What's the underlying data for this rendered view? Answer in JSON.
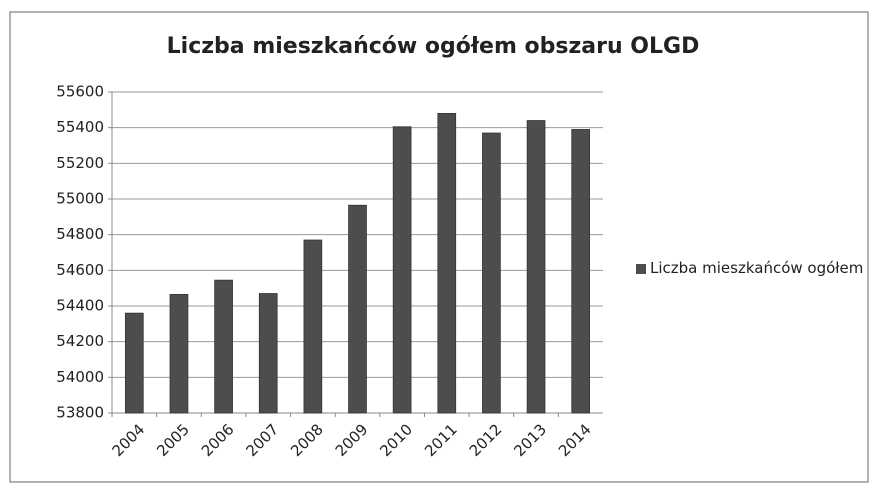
{
  "chart_data": {
    "type": "bar",
    "title": "Liczba mieszkańców ogółem obszaru OLGD",
    "categories": [
      "2004",
      "2005",
      "2006",
      "2007",
      "2008",
      "2009",
      "2010",
      "2011",
      "2012",
      "2013",
      "2014"
    ],
    "series": [
      {
        "name": "Liczba mieszkańców ogółem",
        "color": "#4d4d4d",
        "values": [
          54360,
          54465,
          54545,
          54470,
          54770,
          54965,
          55405,
          55480,
          55370,
          55440,
          55390
        ]
      }
    ],
    "ylim": [
      53800,
      55600
    ],
    "yticks": [
      53800,
      54000,
      54200,
      54400,
      54600,
      54800,
      55000,
      55200,
      55400,
      55600
    ],
    "grid": true,
    "legend": "right"
  }
}
